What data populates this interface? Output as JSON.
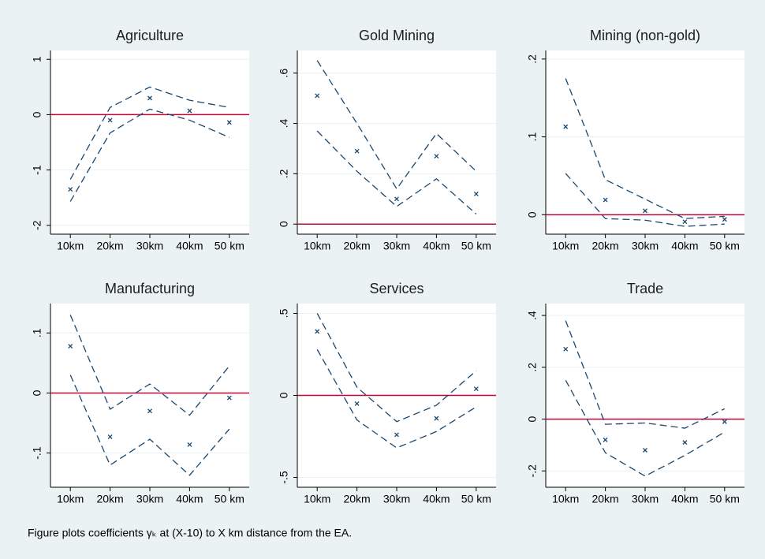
{
  "chart_data": [
    {
      "type": "line",
      "title": "Agriculture",
      "categories": [
        "10km",
        "20km",
        "30km",
        "40km",
        "50 km"
      ],
      "series": [
        {
          "color": "#1a476f",
          "marker": "x",
          "values": [
            -1.35,
            -0.1,
            0.3,
            0.07,
            -0.14
          ]
        },
        {
          "color": "#1a476f",
          "dash": true,
          "values": [
            -1.17,
            0.13,
            0.5,
            0.26,
            0.13
          ]
        },
        {
          "color": "#1a476f",
          "dash": true,
          "values": [
            -1.57,
            -0.33,
            0.1,
            -0.1,
            -0.41
          ]
        }
      ],
      "reference_line": {
        "value": 0,
        "color": "#c10534"
      },
      "ylim": [
        -2.16,
        1.16
      ],
      "yticks": [
        -2,
        -1,
        0,
        1
      ],
      "grid": true
    },
    {
      "type": "line",
      "title": "Gold Mining",
      "categories": [
        "10km",
        "20km",
        "30km",
        "40km",
        "50 km"
      ],
      "series": [
        {
          "color": "#1a476f",
          "marker": "x",
          "values": [
            0.51,
            0.29,
            0.1,
            0.27,
            0.12
          ]
        },
        {
          "color": "#1a476f",
          "dash": true,
          "values": [
            0.65,
            0.4,
            0.14,
            0.36,
            0.21
          ]
        },
        {
          "color": "#1a476f",
          "dash": true,
          "values": [
            0.37,
            0.21,
            0.07,
            0.18,
            0.04
          ]
        }
      ],
      "reference_line": {
        "value": 0,
        "color": "#c10534"
      },
      "ylim": [
        -0.04,
        0.69
      ],
      "yticks": [
        0,
        {
          "value": 0.2,
          "label": ".2"
        },
        {
          "value": 0.4,
          "label": ".4"
        },
        {
          "value": 0.6,
          "label": ".6"
        }
      ],
      "grid": true
    },
    {
      "type": "line",
      "title": "Mining (non-gold)",
      "categories": [
        "10km",
        "20km",
        "30km",
        "40km",
        "50 km"
      ],
      "series": [
        {
          "color": "#1a476f",
          "marker": "x",
          "values": [
            0.113,
            0.019,
            0.005,
            -0.009,
            -0.006
          ]
        },
        {
          "color": "#1a476f",
          "dash": true,
          "values": [
            0.175,
            0.045,
            0.02,
            -0.005,
            -0.002
          ]
        },
        {
          "color": "#1a476f",
          "dash": true,
          "values": [
            0.053,
            -0.005,
            -0.007,
            -0.015,
            -0.012
          ]
        }
      ],
      "reference_line": {
        "value": 0,
        "color": "#c10534"
      },
      "ylim": [
        -0.025,
        0.211
      ],
      "yticks": [
        0,
        {
          "value": 0.1,
          "label": ".1"
        },
        {
          "value": 0.2,
          "label": ".2"
        }
      ],
      "grid": true
    },
    {
      "type": "line",
      "title": "Manufacturing",
      "categories": [
        "10km",
        "20km",
        "30km",
        "40km",
        "50 km"
      ],
      "series": [
        {
          "color": "#1a476f",
          "marker": "x",
          "values": [
            0.078,
            -0.073,
            -0.03,
            -0.086,
            -0.008
          ]
        },
        {
          "color": "#1a476f",
          "dash": true,
          "values": [
            0.13,
            -0.027,
            0.015,
            -0.037,
            0.045
          ]
        },
        {
          "color": "#1a476f",
          "dash": true,
          "values": [
            0.03,
            -0.12,
            -0.077,
            -0.137,
            -0.06
          ]
        }
      ],
      "reference_line": {
        "value": 0,
        "color": "#c10534"
      },
      "ylim": [
        -0.157,
        0.149
      ],
      "yticks": [
        {
          "value": -0.1,
          "label": "-.1"
        },
        0,
        {
          "value": 0.1,
          "label": ".1"
        }
      ],
      "grid": true
    },
    {
      "type": "line",
      "title": "Services",
      "categories": [
        "10km",
        "20km",
        "30km",
        "40km",
        "50 km"
      ],
      "series": [
        {
          "color": "#1a476f",
          "marker": "x",
          "values": [
            0.39,
            -0.05,
            -0.24,
            -0.14,
            0.04
          ]
        },
        {
          "color": "#1a476f",
          "dash": true,
          "values": [
            0.5,
            0.05,
            -0.16,
            -0.06,
            0.15
          ]
        },
        {
          "color": "#1a476f",
          "dash": true,
          "values": [
            0.28,
            -0.15,
            -0.32,
            -0.22,
            -0.07
          ]
        }
      ],
      "reference_line": {
        "value": 0,
        "color": "#c10534"
      },
      "ylim": [
        -0.56,
        0.56
      ],
      "yticks": [
        {
          "value": -0.5,
          "label": "-.5"
        },
        0,
        {
          "value": 0.5,
          "label": ".5"
        }
      ],
      "grid": true
    },
    {
      "type": "line",
      "title": "Trade",
      "categories": [
        "10km",
        "20km",
        "30km",
        "40km",
        "50 km"
      ],
      "series": [
        {
          "color": "#1a476f",
          "marker": "x",
          "values": [
            0.27,
            -0.08,
            -0.12,
            -0.09,
            -0.01
          ]
        },
        {
          "color": "#1a476f",
          "dash": true,
          "values": [
            0.38,
            -0.02,
            -0.015,
            -0.035,
            0.04
          ]
        },
        {
          "color": "#1a476f",
          "dash": true,
          "values": [
            0.15,
            -0.13,
            -0.22,
            -0.14,
            -0.05
          ]
        }
      ],
      "reference_line": {
        "value": 0,
        "color": "#c10534"
      },
      "ylim": [
        -0.263,
        0.446
      ],
      "yticks": [
        {
          "value": -0.2,
          "label": "-.2"
        },
        0,
        {
          "value": 0.2,
          "label": ".2"
        },
        {
          "value": 0.4,
          "label": ".4"
        }
      ],
      "grid": true
    }
  ],
  "caption": "Figure plots coefficients γₖ at (X-10) to X km distance from the EA."
}
